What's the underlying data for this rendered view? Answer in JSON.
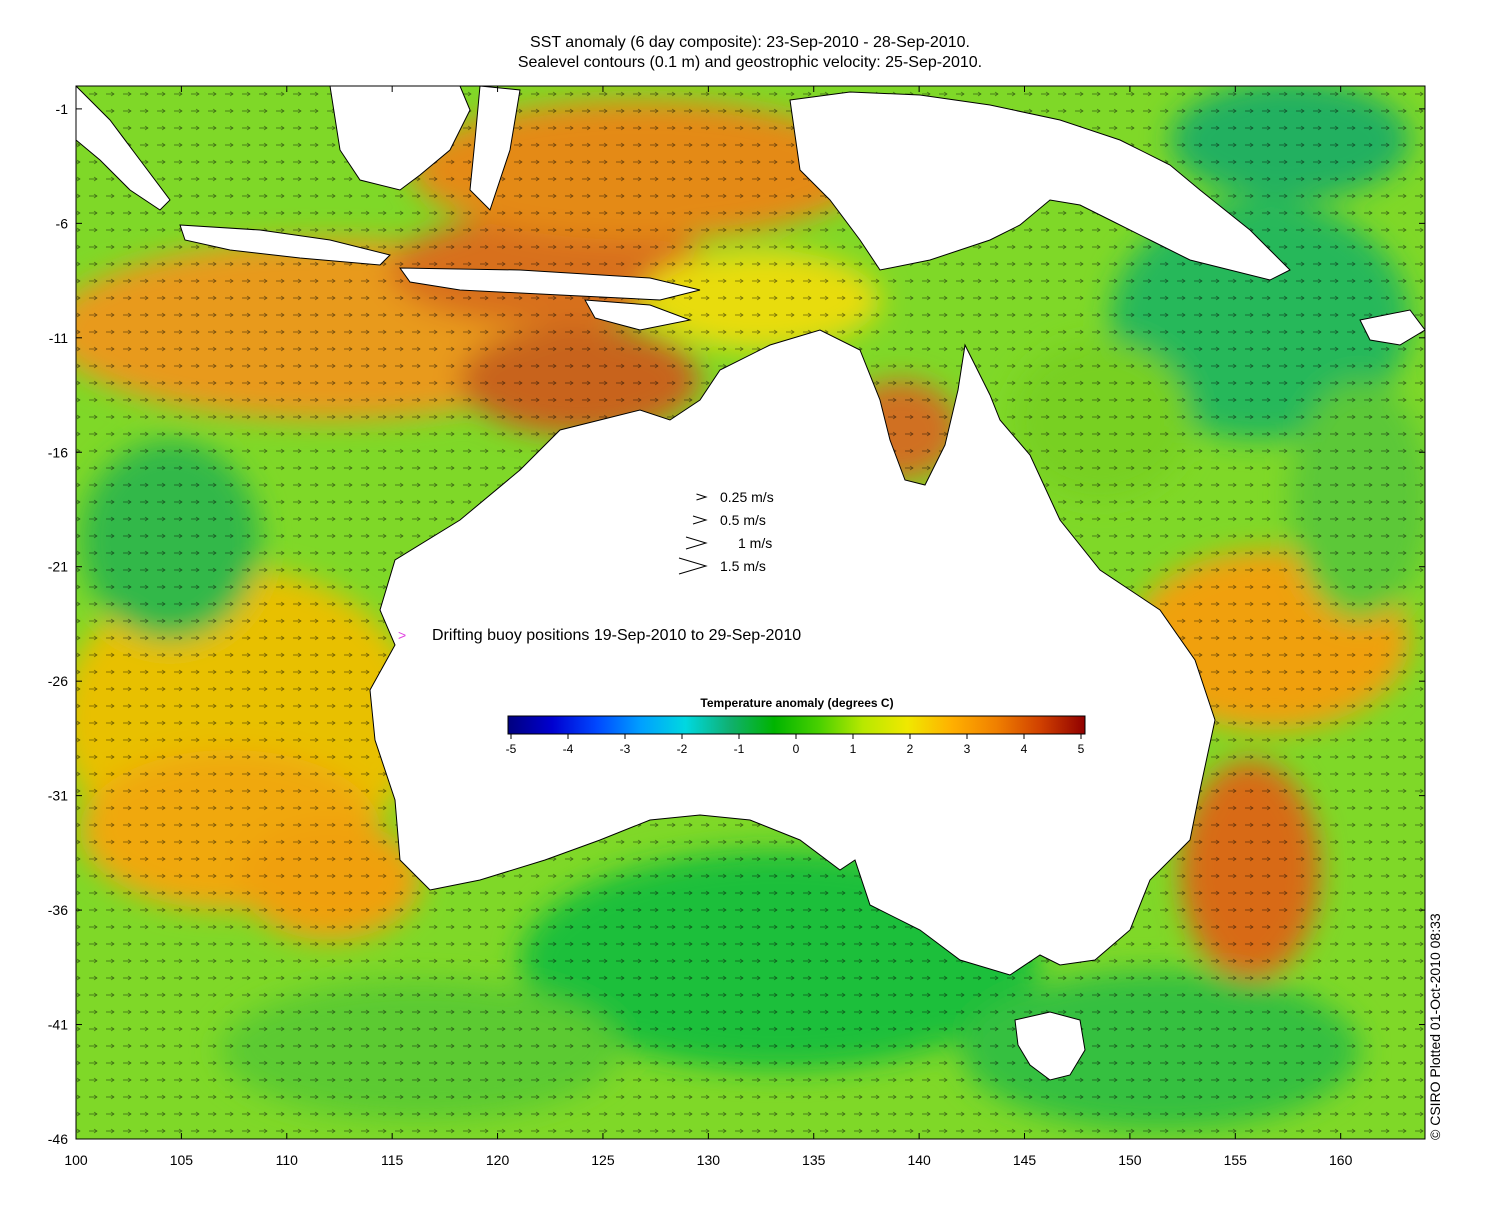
{
  "title_line1": "SST anomaly (6 day composite): 23-Sep-2010 - 28-Sep-2010.",
  "title_line2": "Sealevel contours (0.1 m) and geostrophic velocity: 25-Sep-2010.",
  "y_ticks": [
    "-1",
    "-6",
    "-11",
    "-16",
    "-21",
    "-26",
    "-31",
    "-36",
    "-41",
    "-46"
  ],
  "x_ticks": [
    "100",
    "105",
    "110",
    "115",
    "120",
    "125",
    "130",
    "135",
    "140",
    "145",
    "150",
    "155",
    "160"
  ],
  "velocity_legend": [
    {
      "label": "0.25 m/s",
      "speed": 0.25
    },
    {
      "label": "0.5 m/s",
      "speed": 0.5
    },
    {
      "label": "1 m/s",
      "speed": 1
    },
    {
      "label": "1.5 m/s",
      "speed": 1.5
    }
  ],
  "buoy_marker": ">",
  "buoy_label": "Drifting buoy positions 19-Sep-2010 to 29-Sep-2010",
  "colorbar": {
    "title": "Temperature anomaly (degrees C)",
    "ticks": [
      "-5",
      "-4",
      "-3",
      "-2",
      "-1",
      "0",
      "1",
      "2",
      "3",
      "4",
      "5"
    ],
    "range": [
      -5,
      5
    ],
    "colors": [
      "#00007f",
      "#0000d0",
      "#0048ff",
      "#00a0ff",
      "#00d8e0",
      "#10b070",
      "#00b400",
      "#48d000",
      "#b8e800",
      "#f0e800",
      "#ffb000",
      "#f08000",
      "#d04000",
      "#900000"
    ]
  },
  "copyright": "© CSIRO Plotted 01-Oct-2010 08:33",
  "map": {
    "lon_range": [
      100,
      164
    ],
    "lat_range": [
      -46,
      0
    ],
    "land_color": "#ffffff",
    "ocean_colors": [
      "#1fbf3a",
      "#8fdb20",
      "#e8e000",
      "#f2a800",
      "#d86a10"
    ]
  }
}
